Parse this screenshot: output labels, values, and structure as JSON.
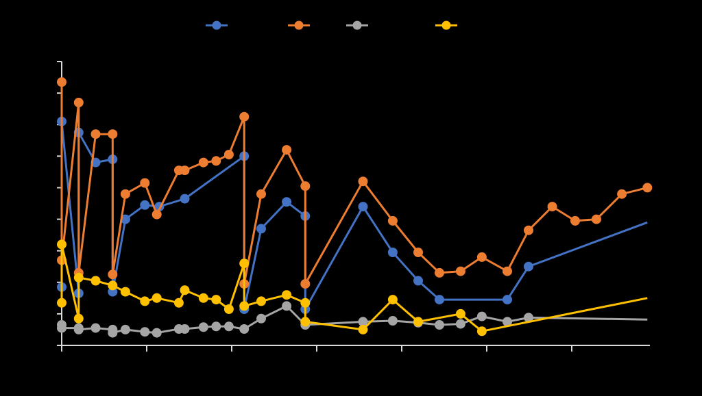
{
  "chart_data": {
    "type": "line",
    "title": "",
    "xlabel": "",
    "ylabel": "",
    "xlim": [
      0,
      7
    ],
    "ylim": [
      0,
      9
    ],
    "grid": false,
    "legend_position": "top",
    "x_ticks": [
      0,
      1,
      2,
      3,
      4,
      5,
      6,
      7
    ],
    "y_ticks": [
      0,
      1,
      2,
      3,
      4,
      5,
      6,
      7,
      8,
      9
    ],
    "series": [
      {
        "name": "",
        "color": "#4472C4",
        "points": [
          [
            0.0,
            1.85
          ],
          [
            0.0,
            7.1
          ],
          [
            0.2,
            1.65
          ],
          [
            0.2,
            6.75
          ],
          [
            0.4,
            5.8
          ],
          [
            0.6,
            5.9
          ],
          [
            0.6,
            1.7
          ],
          [
            0.75,
            4.0
          ],
          [
            0.98,
            4.45
          ],
          [
            1.15,
            4.4
          ],
          [
            1.45,
            4.65
          ],
          [
            2.15,
            6.0
          ],
          [
            2.15,
            1.15
          ],
          [
            2.35,
            3.7
          ],
          [
            2.65,
            4.55
          ],
          [
            2.87,
            4.1
          ],
          [
            2.87,
            1.15
          ],
          [
            3.55,
            4.4
          ],
          [
            3.9,
            2.95
          ],
          [
            4.2,
            2.05
          ],
          [
            4.45,
            1.45
          ],
          [
            5.25,
            1.45
          ],
          [
            5.5,
            2.5
          ],
          [
            6.9,
            3.9
          ]
        ]
      },
      {
        "name": "",
        "color": "#ED7D31",
        "points": [
          [
            0.0,
            8.35
          ],
          [
            0.0,
            2.7
          ],
          [
            0.2,
            7.7
          ],
          [
            0.2,
            2.3
          ],
          [
            0.4,
            6.7
          ],
          [
            0.6,
            6.7
          ],
          [
            0.6,
            2.25
          ],
          [
            0.75,
            4.8
          ],
          [
            0.98,
            5.15
          ],
          [
            1.12,
            4.15
          ],
          [
            1.38,
            5.55
          ],
          [
            1.45,
            5.55
          ],
          [
            1.67,
            5.8
          ],
          [
            1.82,
            5.85
          ],
          [
            1.97,
            6.05
          ],
          [
            2.15,
            7.25
          ],
          [
            2.15,
            1.95
          ],
          [
            2.35,
            4.8
          ],
          [
            2.65,
            6.2
          ],
          [
            2.87,
            5.05
          ],
          [
            2.87,
            1.95
          ],
          [
            3.55,
            5.2
          ],
          [
            3.9,
            3.95
          ],
          [
            4.2,
            2.95
          ],
          [
            4.45,
            2.3
          ],
          [
            4.7,
            2.35
          ],
          [
            4.95,
            2.8
          ],
          [
            5.25,
            2.35
          ],
          [
            5.5,
            3.65
          ],
          [
            5.78,
            4.4
          ],
          [
            6.05,
            3.95
          ],
          [
            6.3,
            4.0
          ],
          [
            6.6,
            4.8
          ],
          [
            6.9,
            5.0
          ]
        ]
      },
      {
        "name": "",
        "color": "#A5A5A5",
        "points": [
          [
            0.0,
            0.65
          ],
          [
            0.0,
            0.55
          ],
          [
            0.2,
            0.55
          ],
          [
            0.2,
            0.5
          ],
          [
            0.4,
            0.55
          ],
          [
            0.6,
            0.5
          ],
          [
            0.6,
            0.4
          ],
          [
            0.75,
            0.5
          ],
          [
            0.98,
            0.43
          ],
          [
            1.12,
            0.4
          ],
          [
            1.38,
            0.52
          ],
          [
            1.45,
            0.52
          ],
          [
            1.67,
            0.58
          ],
          [
            1.82,
            0.6
          ],
          [
            1.97,
            0.6
          ],
          [
            2.15,
            0.52
          ],
          [
            2.35,
            0.85
          ],
          [
            2.65,
            1.25
          ],
          [
            2.87,
            0.65
          ],
          [
            3.55,
            0.75
          ],
          [
            3.9,
            0.78
          ],
          [
            4.2,
            0.72
          ],
          [
            4.45,
            0.65
          ],
          [
            4.7,
            0.68
          ],
          [
            4.95,
            0.92
          ],
          [
            5.25,
            0.75
          ],
          [
            5.5,
            0.88
          ],
          [
            6.9,
            0.82
          ]
        ]
      },
      {
        "name": "",
        "color": "#FFC000",
        "points": [
          [
            0.0,
            1.35
          ],
          [
            0.0,
            3.2
          ],
          [
            0.2,
            0.85
          ],
          [
            0.2,
            2.15
          ],
          [
            0.4,
            2.05
          ],
          [
            0.6,
            1.9
          ],
          [
            0.75,
            1.7
          ],
          [
            0.98,
            1.4
          ],
          [
            1.12,
            1.5
          ],
          [
            1.38,
            1.35
          ],
          [
            1.45,
            1.75
          ],
          [
            1.67,
            1.5
          ],
          [
            1.82,
            1.45
          ],
          [
            1.97,
            1.15
          ],
          [
            2.15,
            2.6
          ],
          [
            2.15,
            1.25
          ],
          [
            2.35,
            1.4
          ],
          [
            2.65,
            1.6
          ],
          [
            2.87,
            1.35
          ],
          [
            2.87,
            0.75
          ],
          [
            3.55,
            0.5
          ],
          [
            3.9,
            1.45
          ],
          [
            4.2,
            0.75
          ],
          [
            4.7,
            1.0
          ],
          [
            4.95,
            0.45
          ],
          [
            6.9,
            1.5
          ]
        ],
        "line_only_last_point": true
      }
    ]
  }
}
